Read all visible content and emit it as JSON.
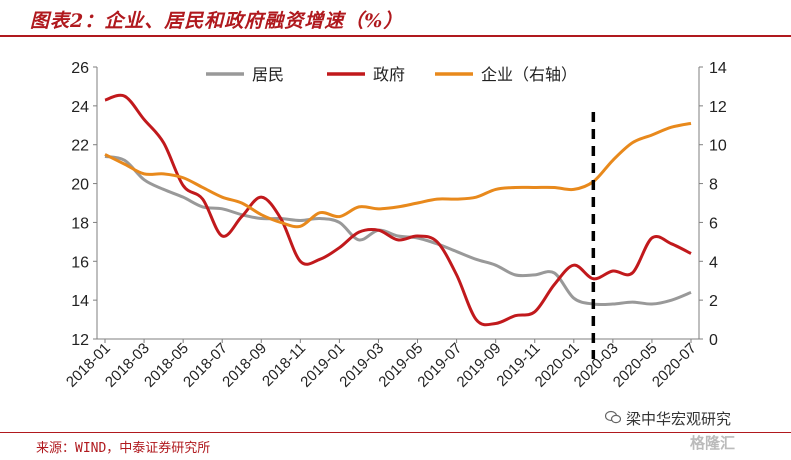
{
  "header": {
    "title": "图表2：企业、居民和政府融资增速（%）"
  },
  "footer": {
    "source": "来源：WIND，中泰证券研究所",
    "watermark": "梁中华宏观研究",
    "watermark2": "格隆汇"
  },
  "colors": {
    "accent": "#b0191e",
    "residents": "#999999",
    "government": "#c1191c",
    "enterprise": "#e8891c"
  },
  "chart_data": {
    "type": "line",
    "title": "图表2：企业、居民和政府融资增速（%）",
    "x": [
      "2018-01",
      "2018-02",
      "2018-03",
      "2018-04",
      "2018-05",
      "2018-06",
      "2018-07",
      "2018-08",
      "2018-09",
      "2018-10",
      "2018-11",
      "2018-12",
      "2019-01",
      "2019-02",
      "2019-03",
      "2019-04",
      "2019-05",
      "2019-06",
      "2019-07",
      "2019-08",
      "2019-09",
      "2019-10",
      "2019-11",
      "2019-12",
      "2020-01",
      "2020-02",
      "2020-03",
      "2020-04",
      "2020-05",
      "2020-06",
      "2020-07"
    ],
    "xticks": [
      "2018-01",
      "2018-03",
      "2018-05",
      "2018-07",
      "2018-09",
      "2018-11",
      "2019-01",
      "2019-03",
      "2019-05",
      "2019-07",
      "2019-09",
      "2019-11",
      "2020-01",
      "2020-03",
      "2020-05",
      "2020-07"
    ],
    "left_axis": {
      "ylim": [
        12,
        26
      ],
      "ticks": [
        "12",
        "14",
        "16",
        "18",
        "20",
        "22",
        "24",
        "26"
      ]
    },
    "right_axis": {
      "ylim": [
        0,
        14
      ],
      "ticks": [
        "0",
        "2",
        "4",
        "6",
        "8",
        "10",
        "12",
        "14"
      ]
    },
    "legend": {
      "placement": "top",
      "entries": [
        "居民",
        "政府",
        "企业（右轴）"
      ]
    },
    "vline_at": "2020-02",
    "series": [
      {
        "name": "居民",
        "axis": "left",
        "values": [
          21.4,
          21.2,
          20.2,
          19.7,
          19.3,
          18.8,
          18.7,
          18.4,
          18.2,
          18.2,
          18.1,
          18.2,
          18.0,
          17.1,
          17.6,
          17.3,
          17.2,
          16.9,
          16.5,
          16.1,
          15.8,
          15.3,
          15.3,
          15.4,
          14.1,
          13.8,
          13.8,
          13.9,
          13.8,
          14.0,
          14.4
        ]
      },
      {
        "name": "政府",
        "axis": "left",
        "values": [
          24.3,
          24.5,
          23.3,
          22.1,
          19.9,
          19.2,
          17.3,
          18.3,
          19.3,
          18.2,
          16.0,
          16.1,
          16.7,
          17.5,
          17.6,
          17.1,
          17.3,
          17.0,
          15.3,
          13.0,
          12.8,
          13.2,
          13.4,
          14.8,
          15.8,
          15.1,
          15.5,
          15.4,
          17.2,
          16.9,
          16.4
        ]
      },
      {
        "name": "企业（右轴）",
        "axis": "right",
        "values": [
          9.5,
          9.0,
          8.5,
          8.5,
          8.3,
          7.8,
          7.3,
          7.0,
          6.4,
          6.0,
          5.8,
          6.5,
          6.3,
          6.8,
          6.7,
          6.8,
          7.0,
          7.2,
          7.2,
          7.3,
          7.7,
          7.8,
          7.8,
          7.8,
          7.7,
          8.1,
          9.2,
          10.1,
          10.5,
          10.9,
          11.1
        ]
      }
    ]
  }
}
